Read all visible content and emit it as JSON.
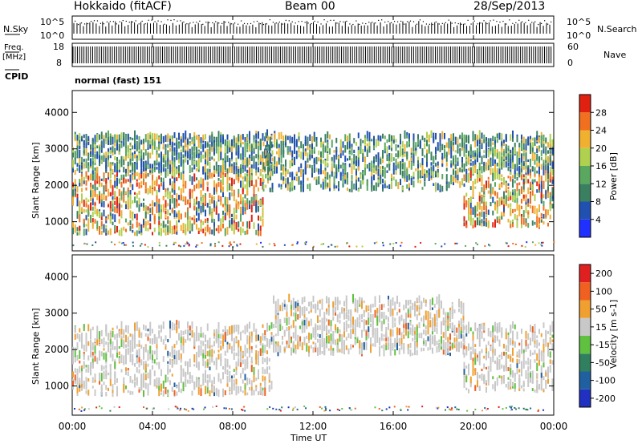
{
  "header": {
    "station": "Hokkaido (fitACF)",
    "beam": "Beam 00",
    "date": "28/Sep/2013"
  },
  "top_panels": {
    "nsky_label": "N.Sky",
    "nsearch_label": "N.Search",
    "nsky_tick_top": "10^5",
    "nsky_tick_bottom": "10^0",
    "freq_label": "Freq.",
    "freq_unit": "[MHz]",
    "freq_tick_top": "18",
    "freq_tick_bottom": "8",
    "nave_label": "Nave",
    "nave_tick_top": "60",
    "nave_tick_bottom": "0",
    "cpid_label": "CPID",
    "cpid_value": "normal (fast) 151"
  },
  "chart_data": [
    {
      "type": "heatmap",
      "name": "power",
      "ylabel": "Slant Range [km]",
      "ylim": [
        200,
        4600
      ],
      "yticks": [
        "1000",
        "2000",
        "3000",
        "4000"
      ],
      "colorbar": {
        "label": "Power [dB]",
        "ticks": [
          "4",
          "8",
          "12",
          "16",
          "20",
          "24",
          "28"
        ],
        "range": [
          0,
          32
        ],
        "colors": [
          "#2030ff",
          "#2050b0",
          "#3a8060",
          "#5aa860",
          "#b0d050",
          "#f0b030",
          "#f07020",
          "#e02010"
        ]
      },
      "bands": [
        {
          "x_start": 0.0,
          "x_end": 9.5,
          "r_low": 600,
          "r_high": 2300,
          "level": "high"
        },
        {
          "x_start": 0.0,
          "x_end": 10.0,
          "r_low": 2300,
          "r_high": 3300,
          "level": "low"
        },
        {
          "x_start": 9.5,
          "x_end": 19.5,
          "r_low": 1800,
          "r_high": 3300,
          "level": "low"
        },
        {
          "x_start": 19.5,
          "x_end": 24.0,
          "r_low": 800,
          "r_high": 2300,
          "level": "high"
        },
        {
          "x_start": 19.5,
          "x_end": 24.0,
          "r_low": 2300,
          "r_high": 3300,
          "level": "low"
        }
      ]
    },
    {
      "type": "heatmap",
      "name": "velocity",
      "ylabel": "Slant Range [km]",
      "ylim": [
        200,
        4600
      ],
      "yticks": [
        "1000",
        "2000",
        "3000",
        "4000"
      ],
      "colorbar": {
        "label": "Velocity [m s-1]",
        "ticks": [
          "200",
          "100",
          "50",
          "15",
          "-15",
          "-50",
          "-100",
          "-200"
        ],
        "colors": [
          "#2030c0",
          "#2060a0",
          "#308060",
          "#60c040",
          "#c8c8c8",
          "#f0a030",
          "#f06020",
          "#e02020"
        ]
      },
      "bands": [
        {
          "x_start": 0.0,
          "x_end": 10.0,
          "r_low": 700,
          "r_high": 2600,
          "level": "near-zero"
        },
        {
          "x_start": 10.0,
          "x_end": 19.5,
          "r_low": 1800,
          "r_high": 3300,
          "level": "near-zero"
        },
        {
          "x_start": 19.5,
          "x_end": 24.0,
          "r_low": 800,
          "r_high": 2600,
          "level": "near-zero"
        }
      ]
    }
  ],
  "xaxis": {
    "label": "Time UT",
    "ticks": [
      "00:00",
      "04:00",
      "08:00",
      "12:00",
      "16:00",
      "20:00",
      "00:00"
    ],
    "range_hours": [
      0,
      24
    ]
  }
}
